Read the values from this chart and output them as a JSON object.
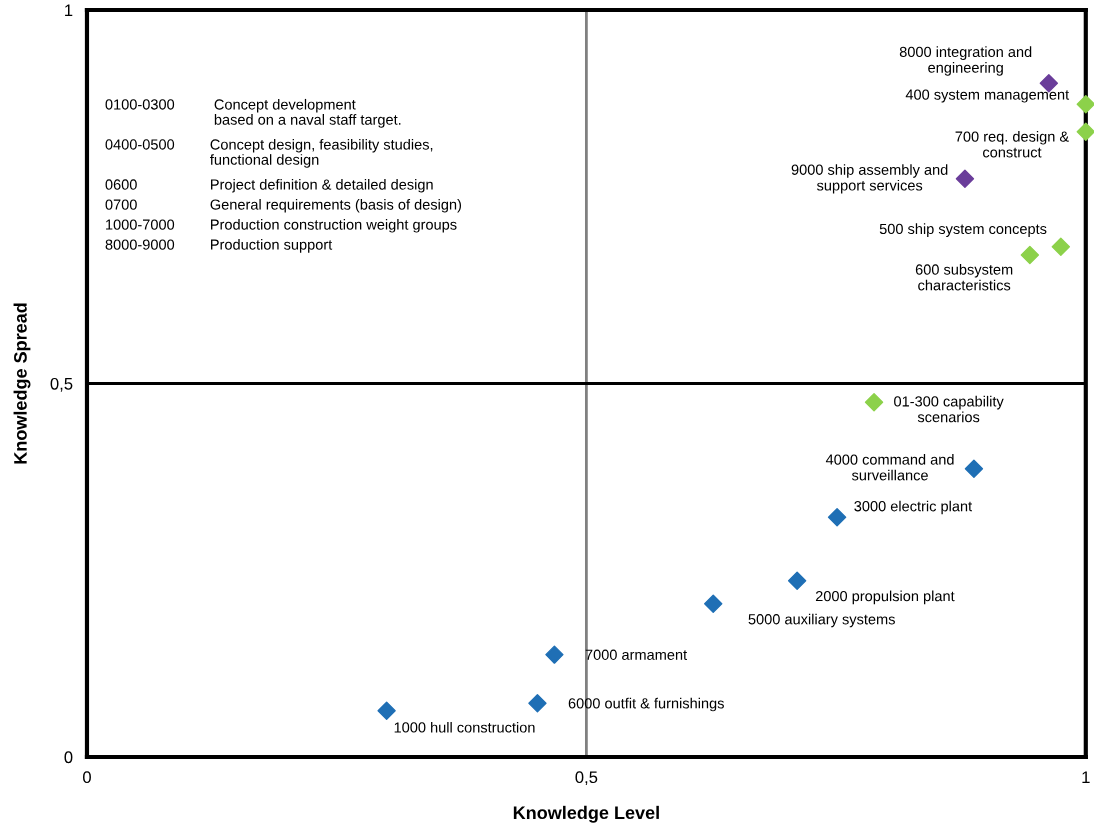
{
  "chart_data": {
    "type": "scatter",
    "xlabel": "Knowledge Level",
    "ylabel": "Knowledge Spread",
    "xlim": [
      0,
      1
    ],
    "ylim": [
      0,
      1
    ],
    "xticks": [
      0,
      {
        "value": 0.5,
        "label": "0,5"
      },
      1
    ],
    "yticks": [
      0,
      {
        "value": 0.5,
        "label": "0,5"
      },
      1
    ],
    "grid": false,
    "legend": false,
    "marker": "diamond",
    "ref_lines": [
      {
        "axis": "x",
        "value": 0.5,
        "color": "#808080"
      },
      {
        "axis": "y",
        "value": 0.5,
        "color": "#000000"
      }
    ],
    "series": [
      {
        "color": "#1f6fb5",
        "x": [
          0.3,
          0.451,
          0.468,
          0.627,
          0.711,
          0.751,
          0.888
        ],
        "values": [
          0.062,
          0.072,
          0.137,
          0.205,
          0.236,
          0.321,
          0.386
        ]
      },
      {
        "color": "#8cd14a",
        "x": [
          0.788,
          0.944,
          0.975,
          1.0,
          1.0
        ],
        "values": [
          0.475,
          0.672,
          0.683,
          0.874,
          0.837
        ]
      },
      {
        "color": "#6a3d9a",
        "x": [
          0.963,
          0.879
        ],
        "values": [
          0.902,
          0.774
        ]
      }
    ],
    "annotations": [
      {
        "text": "8000 integration and\nengineering",
        "x": 0.963,
        "y": 0.902
      },
      {
        "text": "400 system management",
        "x": 1.0,
        "y": 0.874
      },
      {
        "text": "700 req. design &\nconstruct",
        "x": 1.0,
        "y": 0.837
      },
      {
        "text": "9000 ship assembly and\nsupport services",
        "x": 0.879,
        "y": 0.774
      },
      {
        "text": "500 ship system concepts",
        "x": 0.975,
        "y": 0.683
      },
      {
        "text": "600 subsystem\ncharacteristics",
        "x": 0.944,
        "y": 0.672
      },
      {
        "text": "01-300 capability\nscenarios",
        "x": 0.788,
        "y": 0.475
      },
      {
        "text": "4000 command and\nsurveillance",
        "x": 0.888,
        "y": 0.386
      },
      {
        "text": "3000 electric plant",
        "x": 0.751,
        "y": 0.321
      },
      {
        "text": "2000 propulsion plant",
        "x": 0.711,
        "y": 0.236
      },
      {
        "text": "5000 auxiliary systems",
        "x": 0.627,
        "y": 0.205
      },
      {
        "text": "7000 armament",
        "x": 0.468,
        "y": 0.137
      },
      {
        "text": "6000 outfit & furnishings",
        "x": 0.451,
        "y": 0.072
      },
      {
        "text": "1000 hull construction",
        "x": 0.3,
        "y": 0.062
      },
      "0100-0300",
      " Concept development\n based on a naval staff target.",
      "0400-0500",
      "Concept design, feasibility studies,\nfunctional design",
      "0600",
      "Project definition & detailed design",
      "0700",
      "General requirements (basis of design)",
      "1000-7000",
      "Production construction weight groups",
      "8000-9000",
      "Production support"
    ]
  }
}
